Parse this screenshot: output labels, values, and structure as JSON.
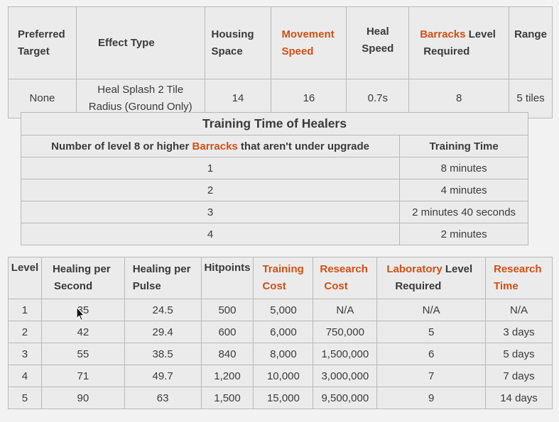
{
  "unit_stats": {
    "headers": {
      "preferred_target_1": "Preferred",
      "preferred_target_2": "Target",
      "effect_type": "Effect Type",
      "housing_space_1": "Housing",
      "housing_space_2": "Space",
      "movement_speed_1": "Movement",
      "movement_speed_2": "Speed",
      "heal_speed_1": "Heal",
      "heal_speed_2": "Speed",
      "barracks_level_link": "Barracks",
      "barracks_level_rest": " Level",
      "barracks_level_2": "Required",
      "range": "Range"
    },
    "row": {
      "preferred_target": "None",
      "effect_type_1": "Heal Splash 2 Tile",
      "effect_type_2": "Radius (Ground Only)",
      "housing_space": "14",
      "movement_speed": "16",
      "heal_speed": "0.7s",
      "barracks_level": "8",
      "range": "5 tiles"
    }
  },
  "training_time": {
    "caption": "Training Time of Healers",
    "header_left_pre": "Number of level 8 or higher ",
    "header_left_link": "Barracks",
    "header_left_post": " that aren't under upgrade",
    "header_right": "Training Time",
    "rows": [
      {
        "count": "1",
        "time": "8 minutes"
      },
      {
        "count": "2",
        "time": "4 minutes"
      },
      {
        "count": "3",
        "time": "2 minutes 40 seconds"
      },
      {
        "count": "4",
        "time": "2 minutes"
      }
    ]
  },
  "levels": {
    "headers": {
      "level": "Level",
      "healing_per_second_1": "Healing per",
      "healing_per_second_2": "Second",
      "healing_per_pulse_1": "Healing per",
      "healing_per_pulse_2": "Pulse",
      "hitpoints": "Hitpoints",
      "training_cost_1": "Training",
      "training_cost_2": "Cost",
      "research_cost_1": "Research",
      "research_cost_2": "Cost",
      "laboratory_link": "Laboratory",
      "laboratory_rest": " Level",
      "laboratory_2": "Required",
      "research_time_1": "Research",
      "research_time_2": "Time"
    },
    "rows": [
      {
        "level": "1",
        "hps": "35",
        "hpp": "24.5",
        "hp": "500",
        "training_cost": "5,000",
        "research_cost": "N/A",
        "lab": "N/A",
        "research_time": "N/A"
      },
      {
        "level": "2",
        "hps": "42",
        "hpp": "29.4",
        "hp": "600",
        "training_cost": "6,000",
        "research_cost": "750,000",
        "lab": "5",
        "research_time": "3 days"
      },
      {
        "level": "3",
        "hps": "55",
        "hpp": "38.5",
        "hp": "840",
        "training_cost": "8,000",
        "research_cost": "1,500,000",
        "lab": "6",
        "research_time": "5 days"
      },
      {
        "level": "4",
        "hps": "71",
        "hpp": "49.7",
        "hp": "1,200",
        "training_cost": "10,000",
        "research_cost": "3,000,000",
        "lab": "7",
        "research_time": "7 days"
      },
      {
        "level": "5",
        "hps": "90",
        "hpp": "63",
        "hp": "1,500",
        "training_cost": "15,000",
        "research_cost": "9,500,000",
        "lab": "9",
        "research_time": "14 days"
      }
    ]
  },
  "colors": {
    "accent": "#d44f14",
    "text": "#3a3a3a",
    "cell_bg": "#ebebeb",
    "border": "#b8b8b8"
  }
}
